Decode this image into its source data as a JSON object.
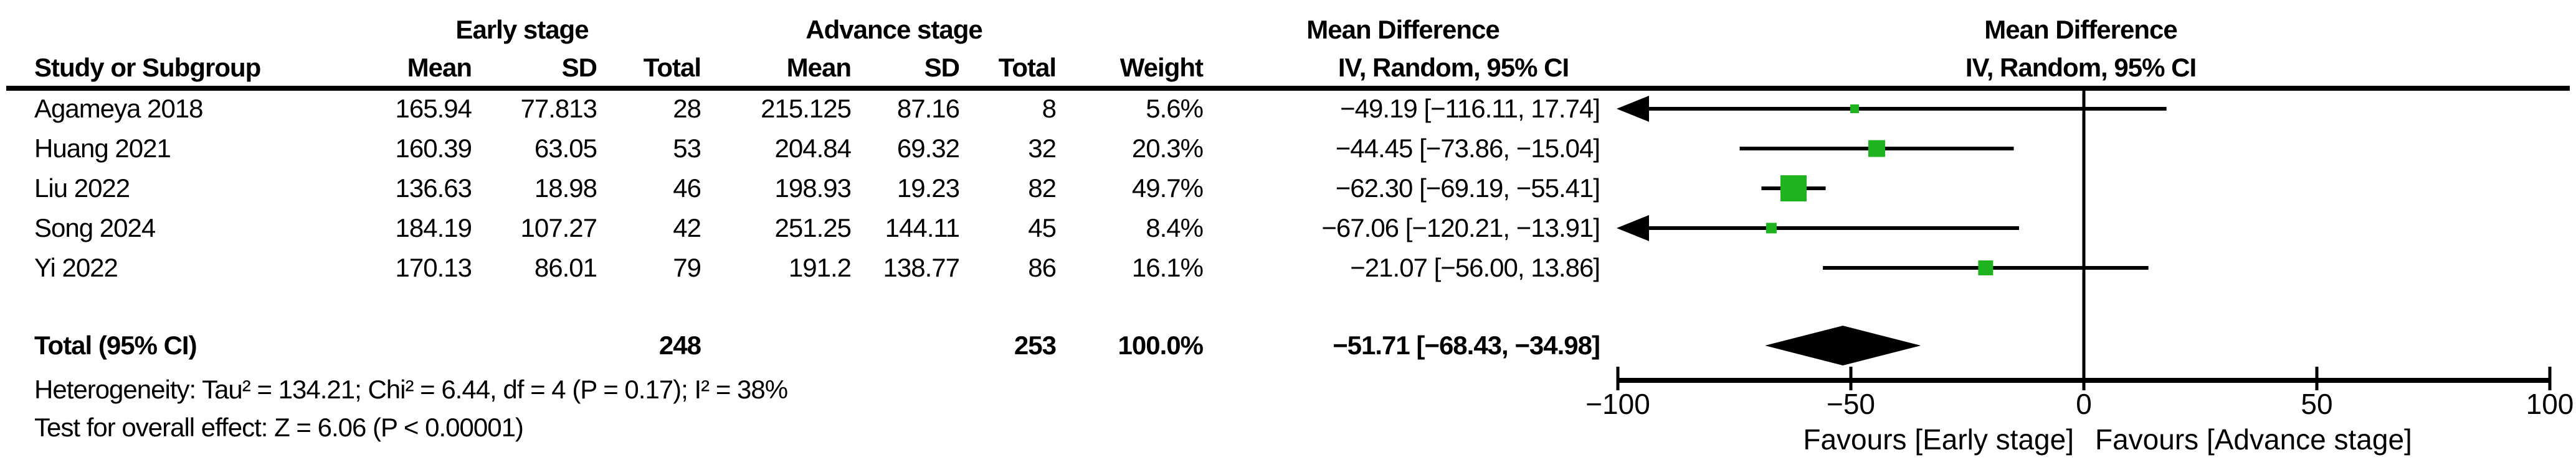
{
  "headers": {
    "group1": "Early stage",
    "group2": "Advance stage",
    "effect_left": "Mean Difference",
    "effect_right": "Mean Difference",
    "method_left": "IV, Random, 95% CI",
    "method_right": "IV, Random, 95% CI"
  },
  "col_headers": {
    "study": "Study or Subgroup",
    "mean": "Mean",
    "sd": "SD",
    "total": "Total",
    "weight": "Weight"
  },
  "footnotes": {
    "heterogeneity": "Heterogeneity: Tau² = 134.21; Chi² = 6.44, df = 4 (P = 0.17); I² = 38%",
    "overall_effect": "Test for overall effect: Z = 6.06 (P < 0.00001)"
  },
  "chart_data": {
    "type": "forest",
    "effect_measure": "Mean Difference, IV, Random, 95% CI",
    "marker_color": "#1FB41F",
    "diamond_color": "#000000",
    "x_axis": {
      "min": -100,
      "max": 100,
      "ticks": [
        -100,
        -50,
        0,
        50,
        100
      ],
      "label_left": "Favours [Early stage]",
      "label_right": "Favours [Advance stage]"
    },
    "studies": [
      {
        "name": "Agameya 2018",
        "mean1": "165.94",
        "sd1": "77.813",
        "total1": "28",
        "mean2": "215.125",
        "sd2": "87.16",
        "total2": "8",
        "weight": "5.6%",
        "ci_text": "−49.19 [−116.11, 17.74]",
        "md": -49.19,
        "lo": -116.11,
        "hi": 17.74,
        "weight_pct": 5.6
      },
      {
        "name": "Huang 2021",
        "mean1": "160.39",
        "sd1": "63.05",
        "total1": "53",
        "mean2": "204.84",
        "sd2": "69.32",
        "total2": "32",
        "weight": "20.3%",
        "ci_text": "−44.45 [−73.86, −15.04]",
        "md": -44.45,
        "lo": -73.86,
        "hi": -15.04,
        "weight_pct": 20.3
      },
      {
        "name": "Liu 2022",
        "mean1": "136.63",
        "sd1": "18.98",
        "total1": "46",
        "mean2": "198.93",
        "sd2": "19.23",
        "total2": "82",
        "weight": "49.7%",
        "ci_text": "−62.30 [−69.19, −55.41]",
        "md": -62.3,
        "lo": -69.19,
        "hi": -55.41,
        "weight_pct": 49.7
      },
      {
        "name": "Song 2024",
        "mean1": "184.19",
        "sd1": "107.27",
        "total1": "42",
        "mean2": "251.25",
        "sd2": "144.11",
        "total2": "45",
        "weight": "8.4%",
        "ci_text": "−67.06 [−120.21, −13.91]",
        "md": -67.06,
        "lo": -120.21,
        "hi": -13.91,
        "weight_pct": 8.4
      },
      {
        "name": "Yi 2022",
        "mean1": "170.13",
        "sd1": "86.01",
        "total1": "79",
        "mean2": "191.2",
        "sd2": "138.77",
        "total2": "86",
        "weight": "16.1%",
        "ci_text": "−21.07 [−56.00, 13.86]",
        "md": -21.07,
        "lo": -56.0,
        "hi": 13.86,
        "weight_pct": 16.1
      }
    ],
    "total": {
      "label": "Total (95% CI)",
      "total1": "248",
      "total2": "253",
      "weight": "100.0%",
      "ci_text": "−51.71 [−68.43, −34.98]",
      "md": -51.71,
      "lo": -68.43,
      "hi": -34.98
    }
  }
}
